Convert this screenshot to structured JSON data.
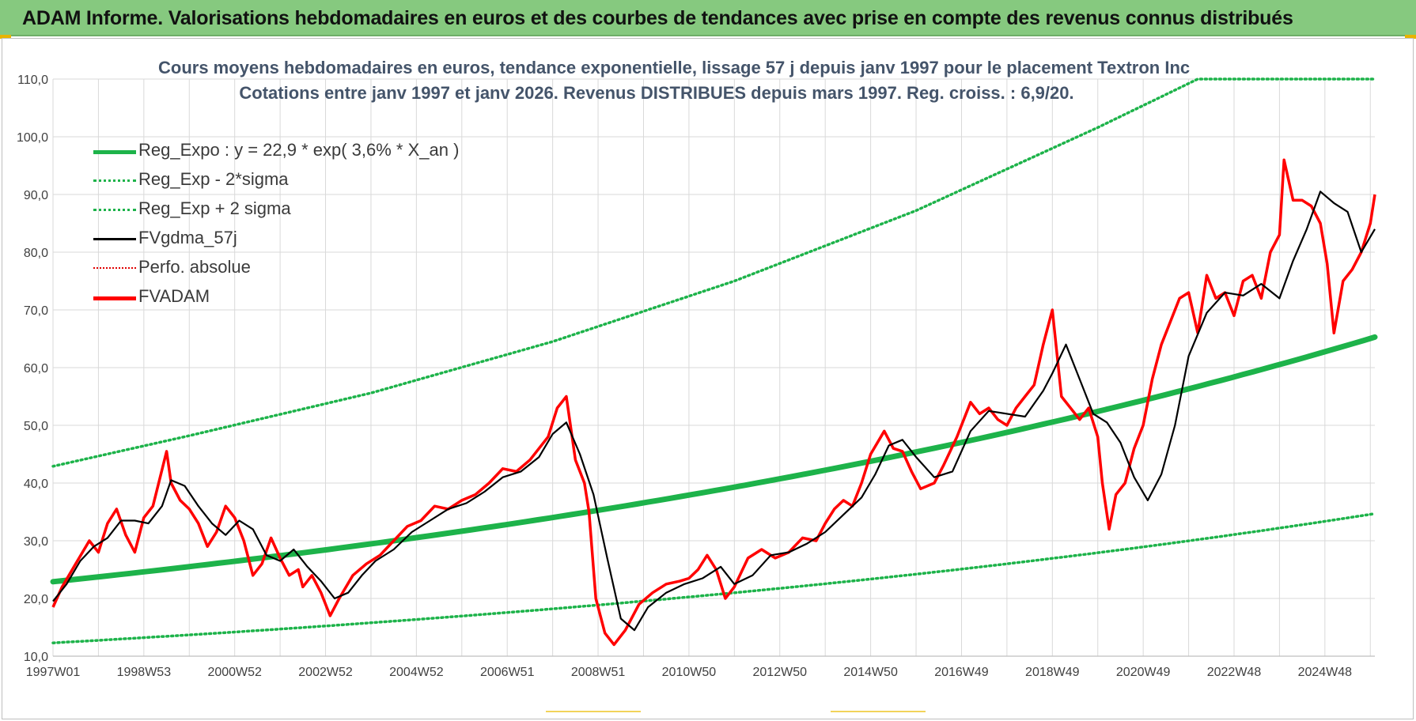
{
  "banner": {
    "text": "ADAM Informe. Valorisations hebdomadaires en euros et des courbes de tendances avec prise en compte des revenus connus distribués"
  },
  "colors": {
    "banner_bg": "#86c97f",
    "trend": "#1db34a",
    "band": "#1db34a",
    "smooth": "#000000",
    "perfo": "#e00000",
    "fvadam": "#ff0000",
    "title": "#44546a",
    "grid": "#d9d9d9"
  },
  "chart_data": {
    "type": "line",
    "title_line1": "Cours moyens hebdomadaires en euros, tendance exponentielle, lissage 57 j depuis janv 1997  pour le placement Textron Inc",
    "title_line2": "Cotations entre janv 1997 et janv 2026. Revenus DISTRIBUES depuis mars 1997.  Reg. croiss. : 6,9/20.",
    "ylim": [
      10,
      110
    ],
    "y_ticks": [
      "110,0",
      "100,0",
      "90,0",
      "80,0",
      "70,0",
      "60,0",
      "50,0",
      "40,0",
      "30,0",
      "20,0",
      "10,0"
    ],
    "x_ticks": [
      {
        "label": "1997W01",
        "year": 1997.0
      },
      {
        "label": "1998W53",
        "year": 1999.0
      },
      {
        "label": "2000W52",
        "year": 2001.0
      },
      {
        "label": "2002W52",
        "year": 2003.0
      },
      {
        "label": "2004W52",
        "year": 2005.0
      },
      {
        "label": "2006W51",
        "year": 2007.0
      },
      {
        "label": "2008W51",
        "year": 2009.0
      },
      {
        "label": "2010W50",
        "year": 2011.0
      },
      {
        "label": "2012W50",
        "year": 2013.0
      },
      {
        "label": "2014W50",
        "year": 2015.0
      },
      {
        "label": "2016W49",
        "year": 2017.0
      },
      {
        "label": "2018W49",
        "year": 2019.0
      },
      {
        "label": "2020W49",
        "year": 2021.0
      },
      {
        "label": "2022W48",
        "year": 2023.0
      },
      {
        "label": "2024W48",
        "year": 2025.0
      }
    ],
    "xlim": [
      1997.0,
      2026.1
    ],
    "legend": [
      {
        "label": "Reg_Expo : y = 22,9 * exp( 3,6% *  X_an )",
        "style": "solid-thick",
        "color": "#1db34a"
      },
      {
        "label": "Reg_Exp - 2*sigma",
        "style": "dotted",
        "color": "#1db34a"
      },
      {
        "label": "Reg_Exp + 2 sigma",
        "style": "dotted",
        "color": "#1db34a"
      },
      {
        "label": "FVgdma_57j",
        "style": "solid",
        "color": "#000000"
      },
      {
        "label": "Perfo. absolue",
        "style": "dotted-thin",
        "color": "#e00000"
      },
      {
        "label": "FVADAM",
        "style": "solid-thick",
        "color": "#ff0000"
      }
    ],
    "regression": {
      "a": 22.9,
      "rate": 0.036,
      "start_year": 1997.0
    },
    "lower_band": {
      "x": [
        1997.0,
        2026.1
      ],
      "y": [
        12.3,
        34.7
      ]
    },
    "upper_band": {
      "x": [
        1997.0,
        2000.0,
        2004.0,
        2008.0,
        2012.0,
        2016.0,
        2020.0,
        2022.2,
        2026.1
      ],
      "y": [
        42.9,
        48.2,
        55.6,
        64.5,
        75.0,
        87.2,
        101.6,
        110.0,
        110.0
      ]
    },
    "series": [
      {
        "name": "FVADAM",
        "x": [
          1997.0,
          1997.2,
          1997.5,
          1997.8,
          1998.0,
          1998.2,
          1998.4,
          1998.6,
          1998.8,
          1999.0,
          1999.2,
          1999.5,
          1999.6,
          1999.8,
          2000.0,
          2000.2,
          2000.4,
          2000.6,
          2000.8,
          2001.0,
          2001.2,
          2001.4,
          2001.6,
          2001.8,
          2002.0,
          2002.2,
          2002.4,
          2002.5,
          2002.7,
          2002.9,
          2003.1,
          2003.3,
          2003.6,
          2003.9,
          2004.2,
          2004.5,
          2004.8,
          2005.1,
          2005.4,
          2005.7,
          2006.0,
          2006.3,
          2006.6,
          2006.9,
          2007.2,
          2007.5,
          2007.7,
          2007.9,
          2008.1,
          2008.3,
          2008.5,
          2008.7,
          2008.8,
          2008.95,
          2009.15,
          2009.35,
          2009.6,
          2009.9,
          2010.2,
          2010.5,
          2010.8,
          2011.0,
          2011.2,
          2011.4,
          2011.6,
          2011.8,
          2012.0,
          2012.3,
          2012.6,
          2012.9,
          2013.2,
          2013.5,
          2013.8,
          2014.0,
          2014.2,
          2014.4,
          2014.6,
          2014.8,
          2015.0,
          2015.3,
          2015.5,
          2015.7,
          2015.9,
          2016.1,
          2016.4,
          2016.6,
          2016.9,
          2017.2,
          2017.4,
          2017.6,
          2017.8,
          2018.0,
          2018.2,
          2018.4,
          2018.6,
          2018.8,
          2019.0,
          2019.2,
          2019.4,
          2019.6,
          2019.8,
          2020.0,
          2020.1,
          2020.25,
          2020.4,
          2020.6,
          2020.8,
          2021.0,
          2021.2,
          2021.4,
          2021.6,
          2021.8,
          2022.0,
          2022.2,
          2022.4,
          2022.6,
          2022.8,
          2023.0,
          2023.2,
          2023.4,
          2023.6,
          2023.8,
          2024.0,
          2024.1,
          2024.3,
          2024.5,
          2024.7,
          2024.9,
          2025.05,
          2025.2,
          2025.4,
          2025.6,
          2025.8,
          2026.0,
          2026.1
        ],
        "y": [
          18.5,
          22.0,
          26.0,
          30.0,
          28.0,
          33.0,
          35.5,
          31.0,
          28.0,
          34.0,
          36.0,
          45.5,
          40.0,
          37.0,
          35.5,
          33.0,
          29.0,
          31.5,
          36.0,
          34.0,
          30.0,
          24.0,
          26.0,
          30.5,
          27.0,
          24.0,
          25.0,
          22.0,
          24.0,
          21.0,
          17.0,
          20.0,
          24.0,
          26.0,
          27.5,
          30.0,
          32.5,
          33.5,
          36.0,
          35.5,
          37.0,
          38.0,
          40.0,
          42.5,
          42.0,
          44.0,
          46.0,
          48.0,
          53.0,
          55.0,
          44.0,
          40.0,
          35.0,
          20.0,
          14.0,
          12.0,
          14.5,
          19.0,
          21.0,
          22.5,
          23.0,
          23.5,
          25.0,
          27.5,
          25.0,
          20.0,
          22.0,
          27.0,
          28.5,
          27.0,
          28.0,
          30.5,
          30.0,
          33.0,
          35.5,
          37.0,
          36.0,
          40.0,
          45.0,
          49.0,
          46.0,
          45.5,
          42.0,
          39.0,
          40.0,
          43.0,
          48.0,
          54.0,
          52.0,
          53.0,
          51.0,
          50.0,
          53.0,
          55.0,
          57.0,
          64.0,
          70.0,
          55.0,
          53.0,
          51.0,
          53.0,
          48.0,
          40.0,
          32.0,
          38.0,
          40.0,
          46.0,
          50.0,
          58.0,
          64.0,
          68.0,
          72.0,
          73.0,
          66.0,
          76.0,
          72.0,
          73.0,
          69.0,
          75.0,
          76.0,
          72.0,
          80.0,
          83.0,
          96.0,
          89.0,
          89.0,
          88.0,
          85.0,
          78.0,
          66.0,
          75.0,
          77.0,
          80.0,
          85.0,
          90.0
        ]
      },
      {
        "name": "FVgdma_57j",
        "x": [
          1997.0,
          1997.3,
          1997.6,
          1997.9,
          1998.2,
          1998.5,
          1998.8,
          1999.1,
          1999.4,
          1999.6,
          1999.9,
          2000.2,
          2000.5,
          2000.8,
          2001.1,
          2001.4,
          2001.7,
          2002.0,
          2002.3,
          2002.6,
          2002.9,
          2003.2,
          2003.5,
          2003.8,
          2004.1,
          2004.5,
          2004.9,
          2005.3,
          2005.7,
          2006.1,
          2006.5,
          2006.9,
          2007.3,
          2007.7,
          2008.0,
          2008.3,
          2008.6,
          2008.9,
          2009.2,
          2009.5,
          2009.8,
          2010.1,
          2010.5,
          2010.9,
          2011.3,
          2011.7,
          2012.0,
          2012.4,
          2012.8,
          2013.2,
          2013.6,
          2014.0,
          2014.4,
          2014.8,
          2015.1,
          2015.4,
          2015.7,
          2016.0,
          2016.4,
          2016.8,
          2017.2,
          2017.6,
          2018.0,
          2018.4,
          2018.8,
          2019.0,
          2019.3,
          2019.6,
          2019.9,
          2020.2,
          2020.5,
          2020.8,
          2021.1,
          2021.4,
          2021.7,
          2022.0,
          2022.4,
          2022.8,
          2023.2,
          2023.6,
          2024.0,
          2024.3,
          2024.6,
          2024.9,
          2025.2,
          2025.5,
          2025.8,
          2026.1
        ],
        "y": [
          19.5,
          22.5,
          26.5,
          29.0,
          30.5,
          33.5,
          33.5,
          33.0,
          36.0,
          40.5,
          39.5,
          36.0,
          33.0,
          31.0,
          33.5,
          32.0,
          27.5,
          26.5,
          28.5,
          25.5,
          23.0,
          20.0,
          21.0,
          24.0,
          26.5,
          28.5,
          31.5,
          33.5,
          35.5,
          36.5,
          38.5,
          41.0,
          42.0,
          44.5,
          48.5,
          50.5,
          45.0,
          38.0,
          27.0,
          16.5,
          14.5,
          18.5,
          21.0,
          22.5,
          23.5,
          25.5,
          22.5,
          24.0,
          27.5,
          28.0,
          29.5,
          31.5,
          34.5,
          37.5,
          41.5,
          46.5,
          47.5,
          44.5,
          41.0,
          42.0,
          49.0,
          52.5,
          52.0,
          51.5,
          56.0,
          59.0,
          64.0,
          58.0,
          52.0,
          50.5,
          47.0,
          41.0,
          37.0,
          41.5,
          50.0,
          62.0,
          69.5,
          73.0,
          72.5,
          74.5,
          72.0,
          78.5,
          84.0,
          90.5,
          88.5,
          87.0,
          80.0,
          84.0
        ]
      }
    ]
  }
}
